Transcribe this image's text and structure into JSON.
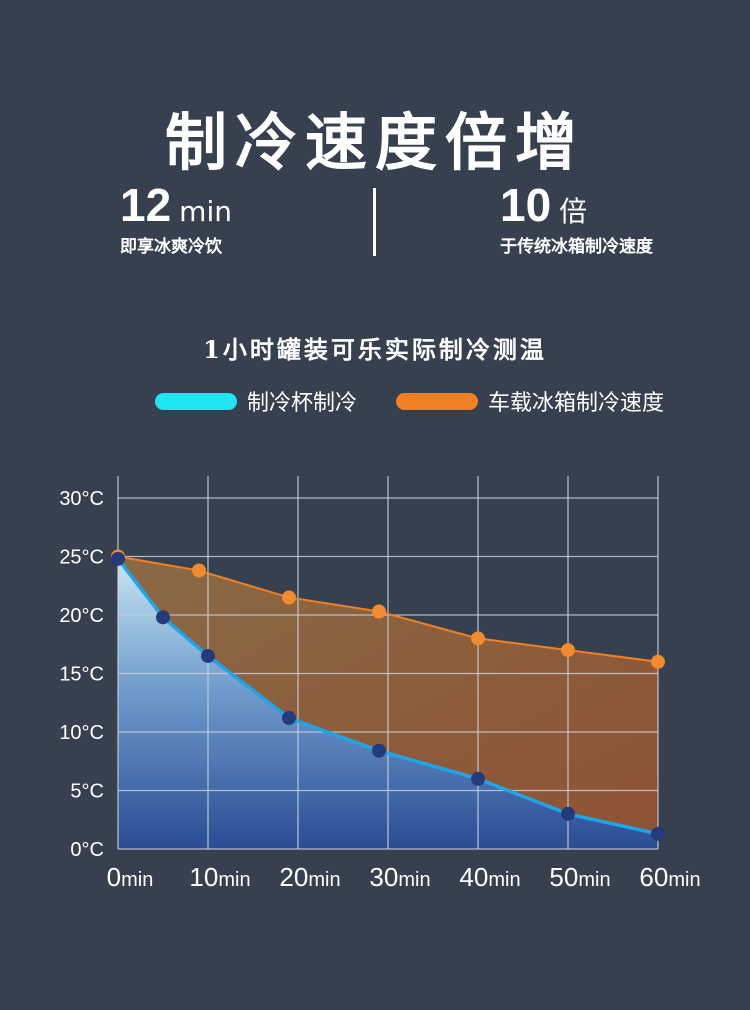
{
  "header": {
    "title": "制冷速度倍增",
    "stat_left": {
      "value": "12",
      "unit": "min",
      "caption": "即享冰爽冷饮"
    },
    "stat_right": {
      "value": "10",
      "unit": "倍",
      "caption": "于传统冰箱制冷速度"
    },
    "subtitle": "1小时罐装可乐实际制冷测温"
  },
  "legend": [
    {
      "label": "制冷杯制冷",
      "color": "#22e5f3"
    },
    {
      "label": "车载冰箱制冷速度",
      "color": "#f07f26"
    }
  ],
  "chart_data": {
    "type": "area",
    "x_ticks": [
      0,
      10,
      20,
      30,
      40,
      50,
      60
    ],
    "x_tick_labels": [
      "0min",
      "10min",
      "20min",
      "30min",
      "40min",
      "50min",
      "60min"
    ],
    "y_ticks": [
      0,
      5,
      10,
      15,
      20,
      25,
      30
    ],
    "y_tick_labels": [
      "0°C",
      "5°C",
      "10°C",
      "15°C",
      "20°C",
      "25°C",
      "30°C"
    ],
    "xlim": [
      0,
      60
    ],
    "ylim": [
      0,
      30
    ],
    "grid": true,
    "series": [
      {
        "name": "制冷杯制冷",
        "color": "#1fa4e8",
        "x": [
          0,
          5,
          10,
          19,
          29,
          40,
          50,
          60
        ],
        "y": [
          24.8,
          19.8,
          16.5,
          11.2,
          8.4,
          6.0,
          3.0,
          1.3
        ]
      },
      {
        "name": "车载冰箱制冷速度",
        "color": "#f07f26",
        "x": [
          0,
          9,
          19,
          29,
          40,
          50,
          60
        ],
        "y": [
          25.0,
          23.8,
          21.5,
          20.3,
          18.0,
          17.0,
          16.0
        ]
      }
    ]
  }
}
